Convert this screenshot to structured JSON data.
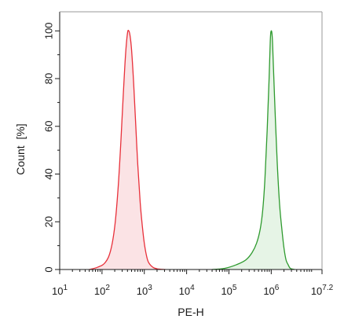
{
  "colors": {
    "series_red_line": "#e8303a",
    "series_red_fill": "#fbe3e5",
    "series_green_line": "#2e9a2e",
    "series_green_fill": "#e6f4e6",
    "axis": "#1a1a1a",
    "background": "#ffffff"
  },
  "chart_data": {
    "type": "area",
    "title": "",
    "xlabel": "PE-H",
    "ylabel": "Count  [%]",
    "x_scale": "log10",
    "xlim": [
      10,
      15848932
    ],
    "ylim": [
      0,
      108
    ],
    "grid": false,
    "legend": "none",
    "x_ticks": [
      {
        "base": "10",
        "exp": "1",
        "value": 10
      },
      {
        "base": "10",
        "exp": "2",
        "value": 100
      },
      {
        "base": "10",
        "exp": "3",
        "value": 1000
      },
      {
        "base": "10",
        "exp": "4",
        "value": 10000
      },
      {
        "base": "10",
        "exp": "5",
        "value": 100000
      },
      {
        "base": "10",
        "exp": "6",
        "value": 1000000
      },
      {
        "base": "10",
        "exp": "7.2",
        "value": 15848932
      }
    ],
    "y_ticks": [
      "0",
      "20",
      "40",
      "60",
      "80",
      "100"
    ],
    "series": [
      {
        "color": "#e8303a",
        "fill": "#fbe3e5",
        "x": [
          50,
          80,
          120,
          160,
          200,
          240,
          280,
          320,
          360,
          400,
          430,
          460,
          500,
          560,
          630,
          700,
          800,
          900,
          1000,
          1120,
          1260,
          1580,
          2000,
          3160
        ],
        "y": [
          0,
          1,
          3,
          8,
          18,
          34,
          54,
          74,
          90,
          99,
          100,
          98,
          92,
          78,
          60,
          44,
          28,
          18,
          11,
          6,
          3,
          1,
          0.3,
          0
        ]
      },
      {
        "color": "#2e9a2e",
        "fill": "#e6f4e6",
        "x": [
          40000,
          80000,
          150000,
          250000,
          350000,
          450000,
          550000,
          630000,
          710000,
          800000,
          890000,
          950000,
          1000000,
          1060000,
          1120000,
          1260000,
          1410000,
          1580000,
          1780000,
          2000000,
          2240000,
          2510000,
          2820000,
          3550000
        ],
        "y": [
          0,
          0.5,
          2,
          4,
          7,
          11,
          17,
          25,
          38,
          58,
          80,
          96,
          100,
          97,
          86,
          62,
          42,
          27,
          17,
          9,
          4,
          2,
          0.5,
          0
        ]
      }
    ]
  }
}
